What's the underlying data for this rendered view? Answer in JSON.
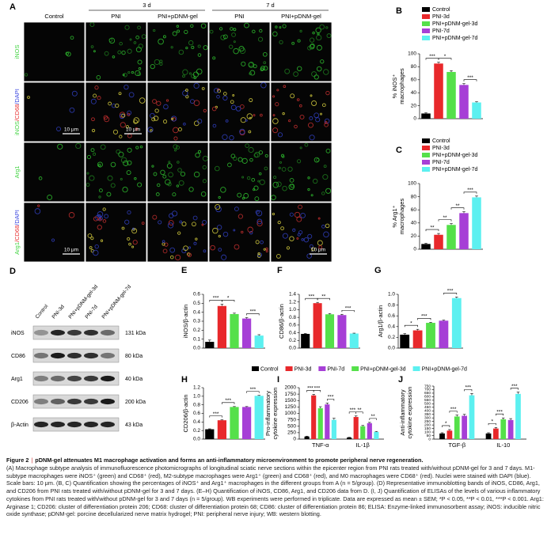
{
  "panel_a": {
    "label": "A",
    "groups": [
      "3 d",
      "7 d"
    ],
    "columns": [
      "Control",
      "PNI",
      "PNI+pDNM-gel",
      "PNI",
      "PNI+pDNM-gel"
    ],
    "rows": [
      [
        "iNOS"
      ],
      [
        "iNOS",
        "/CD68",
        "/DAPI"
      ],
      [
        "Arg1"
      ],
      [
        "Arg1",
        "/CD68",
        "/DAPI"
      ]
    ],
    "row_colors": [
      "#3fd33f",
      "#e83030",
      "#3b46e0"
    ],
    "scale_bars": [
      "10 μm",
      "10 μm",
      "10 μm",
      "10 μm"
    ]
  },
  "panel_d": {
    "label": "D",
    "lanes": [
      "Control",
      "PNI-3d",
      "PNI+pDNM-gel-3d",
      "PNI-7d",
      "PNI+pDNM-gel-7d"
    ],
    "rows": [
      {
        "name": "iNOS",
        "size": "131 kDa"
      },
      {
        "name": "CD86",
        "size": "80 kDa"
      },
      {
        "name": "Arg1",
        "size": "40 kDa"
      },
      {
        "name": "CD206",
        "size": "200 kDa"
      },
      {
        "name": "β-Actin",
        "size": "43 kDa"
      }
    ]
  },
  "shared_legend": [
    {
      "name": "Control",
      "color": "#000000"
    },
    {
      "name": "PNI-3d",
      "color": "#e8282b"
    },
    {
      "name": "PNI-7d",
      "color": "#a63fd6"
    },
    {
      "name": "PNI+pDNM-gel-3d",
      "color": "#55e04a"
    },
    {
      "name": "PNI+pDNM-gel-7d",
      "color": "#5cf0f0"
    }
  ],
  "chart_data": [
    {
      "type": "bar",
      "label": "B",
      "ylabel": [
        "% iNOS⁺",
        "macrophages"
      ],
      "categories": [
        "Control",
        "PNI-3d",
        "PNI+pDNM-gel-3d",
        "PNI-7d",
        "PNI+pDNM-gel-7d"
      ],
      "colors": [
        "#000000",
        "#e8282b",
        "#55e04a",
        "#a63fd6",
        "#5cf0f0"
      ],
      "values": [
        8,
        85,
        72,
        52,
        25
      ],
      "errors": [
        1,
        2,
        2,
        2,
        1
      ],
      "ylim": [
        0,
        100
      ],
      "yticks": [
        0,
        20,
        40,
        60,
        80,
        100
      ],
      "annotations": [
        "***",
        "*",
        "***"
      ]
    },
    {
      "type": "bar",
      "label": "C",
      "ylabel": [
        "% Arg1⁺",
        "macrophages"
      ],
      "categories": [
        "Control",
        "PNI-3d",
        "PNI+pDNM-gel-3d",
        "PNI-7d",
        "PNI+pDNM-gel-7d"
      ],
      "colors": [
        "#000000",
        "#e8282b",
        "#55e04a",
        "#a63fd6",
        "#5cf0f0"
      ],
      "values": [
        8,
        22,
        37,
        55,
        79
      ],
      "errors": [
        1,
        2,
        2,
        2,
        2
      ],
      "ylim": [
        0,
        100
      ],
      "yticks": [
        0,
        20,
        40,
        60,
        80,
        100
      ],
      "annotations": [
        "**",
        "**",
        "**",
        "***"
      ]
    },
    {
      "type": "bar",
      "label": "E",
      "ylabel": [
        "iNOS/β-actin"
      ],
      "colors": [
        "#000000",
        "#e8282b",
        "#55e04a",
        "#a63fd6",
        "#5cf0f0"
      ],
      "values": [
        0.07,
        0.47,
        0.38,
        0.33,
        0.14
      ],
      "errors": [
        0.02,
        0.02,
        0.01,
        0.01,
        0.01
      ],
      "ylim": [
        0,
        0.6
      ],
      "yticks": [
        {
          "value": 0,
          "label": "0.0"
        },
        0.1,
        0.2,
        0.3,
        0.4,
        0.5,
        0.6
      ],
      "annotations": [
        "***",
        "*",
        "***"
      ]
    },
    {
      "type": "bar",
      "label": "F",
      "ylabel": [
        "CD86/β-actin"
      ],
      "colors": [
        "#000000",
        "#e8282b",
        "#55e04a",
        "#a63fd6",
        "#5cf0f0"
      ],
      "values": [
        0.37,
        1.17,
        0.88,
        0.86,
        0.38
      ],
      "errors": [
        0.01,
        0.02,
        0.02,
        0.02,
        0.01
      ],
      "ylim": [
        0,
        1.4
      ],
      "yticks": [
        {
          "value": 0,
          "label": "0.0"
        },
        0.2,
        0.4,
        0.6,
        0.8,
        {
          "value": 1,
          "label": "1.0"
        },
        1.2,
        1.4
      ],
      "annotations": [
        "***",
        "**",
        "***"
      ]
    },
    {
      "type": "bar",
      "label": "G",
      "ylabel": [
        "Arg1/β-actin"
      ],
      "colors": [
        "#000000",
        "#e8282b",
        "#55e04a",
        "#a63fd6",
        "#5cf0f0"
      ],
      "values": [
        0.25,
        0.33,
        0.47,
        0.51,
        0.93
      ],
      "errors": [
        0.02,
        0.02,
        0.01,
        0.01,
        0.02
      ],
      "ylim": [
        0,
        1
      ],
      "yticks": [
        {
          "value": 0,
          "label": "0.0"
        },
        0.2,
        0.4,
        0.6,
        0.8,
        {
          "value": 1,
          "label": "1.0"
        }
      ],
      "annotations": [
        "*",
        "***",
        "***"
      ]
    },
    {
      "type": "bar",
      "label": "H",
      "ylabel": [
        "CD206/β-actin"
      ],
      "colors": [
        "#000000",
        "#e8282b",
        "#55e04a",
        "#a63fd6",
        "#5cf0f0"
      ],
      "values": [
        0.23,
        0.44,
        0.75,
        0.75,
        1.01
      ],
      "errors": [
        0.01,
        0.01,
        0.01,
        0.01,
        0.01
      ],
      "ylim": [
        0,
        1.2
      ],
      "yticks": [
        {
          "value": 0,
          "label": "0.0"
        },
        0.2,
        0.4,
        0.6,
        0.8,
        {
          "value": 1,
          "label": "1.0"
        },
        1.2
      ],
      "annotations": [
        "***",
        "***",
        "***"
      ]
    },
    {
      "type": "grouped-bar",
      "label": "I",
      "ylabel": [
        "Pro-inflammatory",
        "cytokine expression"
      ],
      "categories": [
        "TNF-α",
        "IL-1β"
      ],
      "series": [
        {
          "color": "#000000",
          "values": [
            100,
            60
          ],
          "errors": [
            15,
            10
          ]
        },
        {
          "color": "#e8282b",
          "values": [
            1700,
            860
          ],
          "errors": [
            40,
            40
          ]
        },
        {
          "color": "#55e04a",
          "values": [
            1200,
            500
          ],
          "errors": [
            60,
            30
          ]
        },
        {
          "color": "#a63fd6",
          "values": [
            1350,
            620
          ],
          "errors": [
            50,
            30
          ]
        },
        {
          "color": "#5cf0f0",
          "values": [
            750,
            280
          ],
          "errors": [
            60,
            20
          ]
        }
      ],
      "ylim": [
        0,
        2000
      ],
      "yticks": [
        0,
        250,
        500,
        750,
        1000,
        1250,
        1500,
        1750,
        2000
      ],
      "annotations": [
        [
          "***",
          "***",
          "***"
        ],
        [
          "***",
          "**",
          "**"
        ]
      ]
    },
    {
      "type": "grouped-bar",
      "label": "J",
      "ylabel": [
        "Anti-inflammatory",
        "cytokine expression"
      ],
      "categories": [
        "TGF-β",
        "IL-10"
      ],
      "series": [
        {
          "color": "#000000",
          "values": [
            80,
            80
          ],
          "errors": [
            10,
            10
          ]
        },
        {
          "color": "#e8282b",
          "values": [
            120,
            150
          ],
          "errors": [
            15,
            15
          ]
        },
        {
          "color": "#55e04a",
          "values": [
            320,
            280
          ],
          "errors": [
            20,
            20
          ]
        },
        {
          "color": "#a63fd6",
          "values": [
            330,
            270
          ],
          "errors": [
            20,
            20
          ]
        },
        {
          "color": "#5cf0f0",
          "values": [
            620,
            640
          ],
          "errors": [
            25,
            25
          ]
        }
      ],
      "ylim": [
        0,
        750
      ],
      "yticks": [
        0,
        50,
        100,
        150,
        200,
        250,
        300,
        350,
        400,
        450,
        500,
        550,
        600,
        650,
        700,
        750
      ],
      "annotations": [
        [
          "*",
          "***",
          "***"
        ],
        [
          "*",
          "***",
          "***"
        ]
      ]
    }
  ],
  "caption": {
    "title": "Figure 2",
    "separator": "|",
    "heading": "pDNM-gel attenuates M1 macrophage activation and forms an anti-inflammatory microenvironment to promote peripheral nerve regeneration.",
    "body": "(A) Macrophage subtype analysis of immunofluorescence photomicrographs of longitudinal sciatic nerve sections within the epicenter region from PNI rats treated with/without pDNM-gel for 3 and 7 days. M1-subtype macrophages were iNOS⁺ (green) and CD68⁺ (red), M2-subtype macrophages were Arg1⁺ (green) and CD68⁺ (red), and M0 macrophages were CD68⁺ (red). Nuclei were stained with DAPI (blue). Scale bars: 10 μm. (B, C) Quantification showing the percentages of iNOS⁺ and Arg1⁺ macrophages in the different groups from A (n = 5/group). (D) Representative immunoblotting bands of iNOS, CD86, Arg1, and CD206 from PNI rats treated with/without pDNM-gel for 3 and 7 days. (E–H) Quantification of iNOS, CD86, Arg1, and CD206 data from D. (I, J) Quantification of ELISAs of the levels of various inflammatory cytokines from PNI rats treated with/without pDNM-gel for 3 and 7 days (n = 5/group). WB experiments were performed in triplicate. Data are expressed as mean ± SEM; *P < 0.05, **P < 0.01, ***P < 0.001. Arg1: Arginase 1; CD206: cluster of differentiation protein 206; CD68: cluster of differentiation protein 68; CD86: cluster of differentiation protein 86; ELISA: Enzyme-linked immunosorbent assay; iNOS: inducible nitric oxide synthase; pDNM-gel: porcine decellularized nerve matrix hydrogel; PNI: peripheral nerve injury; WB: western blotting."
  }
}
